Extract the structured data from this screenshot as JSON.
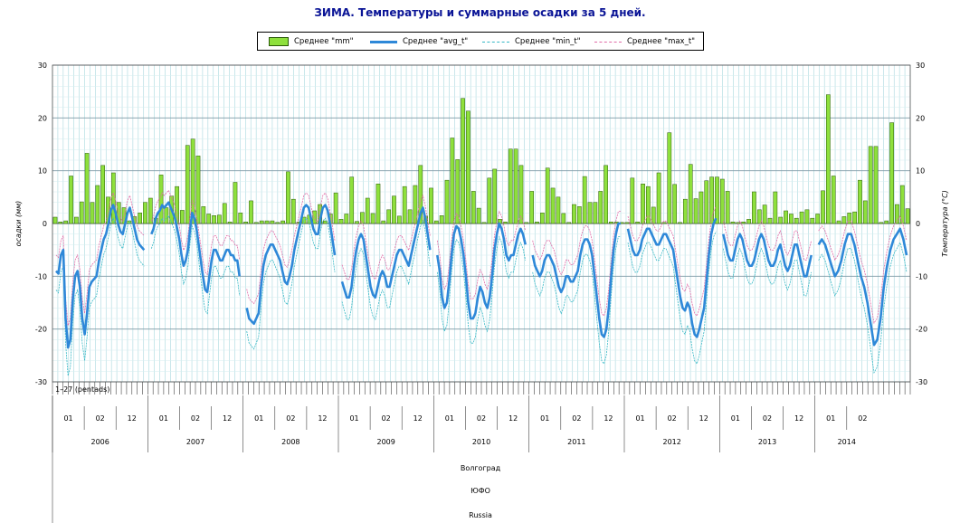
{
  "chart_title": "ЗИМА. Температуры и суммарные осадки за 5 дней.",
  "legend": {
    "mm": "Среднее \"mm\"",
    "avg_t": "Среднее \"avg_t\"",
    "min_t": "Среднее \"min_t\"",
    "max_t": "Среднее \"max_t\""
  },
  "colors": {
    "mm_fill": "#8ee03c",
    "mm_stroke": "#2a5a08",
    "avg_t": "#2e88d8",
    "min_t": "#35b8c6",
    "max_t": "#e06aa6",
    "grid": "#a8d8de",
    "title": "#0a1496"
  },
  "chart_data": {
    "type": "bar+line",
    "title": "ЗИМА. Температуры и суммарные осадки за 5 дней.",
    "ylabel_left": "осадки (мм)",
    "ylabel_right": "Температура (°C)",
    "ylim": [
      -30,
      30
    ],
    "yticks": [
      30,
      20,
      10,
      0,
      -10,
      -20,
      -30
    ],
    "grid": true,
    "day_ticks_label": "1–27 (pentads)",
    "month_labels": [
      "01",
      "02",
      "12"
    ],
    "years": [
      "2006",
      "2007",
      "2008",
      "2009",
      "2010",
      "2011",
      "2012",
      "2013",
      "2014"
    ],
    "station": "Волгоград",
    "district": "ЮФО",
    "country": "Russia",
    "precipitation_mm": [
      1.2,
      0.3,
      0.5,
      9.0,
      1.2,
      4.1,
      13.3,
      4.0,
      7.2,
      11.0,
      5.0,
      9.6,
      4.0,
      3.0,
      0.5,
      1.3,
      2.0,
      4.0,
      4.8,
      1.0,
      9.2,
      3.0,
      5.2,
      7.0,
      2.5,
      14.8,
      16.0,
      12.8,
      3.2,
      1.8,
      1.5,
      1.6,
      3.8,
      0.3,
      7.8,
      2.0,
      0.3,
      4.3,
      0.2,
      0.5,
      0.5,
      0.5,
      0.2,
      0.5,
      9.8,
      4.6,
      0.3,
      1.2,
      1.6,
      2.4,
      3.6,
      0.5,
      1.8,
      5.8,
      0.8,
      1.8,
      8.8,
      0.4,
      2.1,
      4.8,
      1.9,
      7.5,
      0.5,
      2.6,
      5.2,
      1.4,
      7.0,
      2.6,
      7.2,
      11.0,
      1.4,
      6.7,
      0.5,
      1.5,
      8.2,
      16.2,
      12.1,
      23.7,
      21.3,
      6.1,
      2.9,
      0.2,
      8.6,
      10.3,
      0.8,
      0.3,
      14.1,
      14.1,
      11.0,
      0.2,
      6.1,
      0.3,
      2.0,
      10.5,
      6.7,
      5.0,
      1.9,
      0.2,
      3.6,
      3.2,
      8.9,
      4.0,
      4.0,
      6.1,
      11.0,
      0.3,
      0.3,
      0.2,
      0.2,
      8.6,
      0.3,
      7.5,
      7.0,
      3.1,
      9.6,
      0.2,
      17.2,
      7.4,
      0.2,
      4.6,
      11.2,
      4.7,
      6.0,
      8.1,
      8.8,
      8.8,
      8.4,
      6.1,
      0.3,
      0.2,
      0.3,
      0.8,
      6.0,
      2.6,
      3.5,
      1.0,
      6.0,
      1.2,
      2.4,
      1.8,
      1.0,
      2.2,
      2.6,
      1.0,
      1.8,
      6.2,
      24.4,
      9.0,
      0.5,
      1.3,
      2.0,
      2.2,
      8.2,
      4.3,
      14.6,
      14.6,
      0.2,
      0.5,
      19.1,
      3.6,
      7.2,
      2.8
    ],
    "temperature_segments": [
      {
        "year": "2006",
        "avg": [
          -9,
          -9.5,
          -6,
          -5,
          -18,
          -23.5,
          -22,
          -14.5,
          -10,
          -9,
          -12,
          -18,
          -21,
          -17,
          -12,
          -11,
          -10.5,
          -10,
          -7,
          -5,
          -3,
          -2,
          0,
          2.5,
          3.5,
          2,
          0,
          -1.5,
          -2,
          0,
          2,
          3,
          1,
          -1,
          -3,
          -4,
          -4.5,
          -5
        ]
      },
      {
        "year": "2007",
        "avg": [
          -2,
          -1,
          1,
          2,
          2.5,
          3.5,
          3,
          3.5,
          4,
          3,
          2,
          1,
          -1,
          -3,
          -6,
          -8,
          -7,
          -5,
          -1,
          2,
          1,
          -1,
          -4,
          -7,
          -10,
          -12.5,
          -13,
          -10,
          -7,
          -5,
          -5,
          -6,
          -7,
          -7,
          -6,
          -5,
          -5,
          -6,
          -6,
          -7,
          -7,
          -10
        ]
      },
      {
        "year": "2008",
        "avg": [
          -16,
          -18,
          -18.5,
          -19,
          -18,
          -17,
          -12,
          -8,
          -6,
          -5,
          -4,
          -4,
          -5,
          -6,
          -7,
          -9,
          -11,
          -11.5,
          -10,
          -8,
          -5,
          -3,
          -1,
          1,
          3,
          3.5,
          3,
          1,
          -1,
          -2,
          -2,
          1,
          3,
          3.5,
          2.5,
          0,
          -3,
          -6
        ]
      },
      {
        "year": "2009",
        "avg": [
          -11,
          -12.5,
          -14,
          -14,
          -12,
          -8,
          -5,
          -3,
          -2,
          -3,
          -6,
          -9,
          -12,
          -13.5,
          -14,
          -12,
          -10,
          -9,
          -10,
          -12,
          -12,
          -10,
          -8,
          -6,
          -5,
          -5,
          -6,
          -7,
          -8,
          -6,
          -4,
          -2,
          0,
          2,
          3,
          1,
          -2,
          -5
        ]
      },
      {
        "year": "2010",
        "avg": [
          -6,
          -9,
          -14,
          -16,
          -15,
          -11,
          -6,
          -2,
          -0.5,
          -1,
          -3,
          -6,
          -10,
          -15,
          -18,
          -18,
          -17,
          -14,
          -12,
          -13,
          -15,
          -16,
          -14,
          -10,
          -5,
          -2,
          0,
          -1,
          -3,
          -6,
          -7,
          -6,
          -6,
          -4,
          -2,
          -1,
          -2,
          -4
        ]
      },
      {
        "year": "2011",
        "avg": [
          -6,
          -8,
          -9,
          -10,
          -9,
          -7,
          -6,
          -6,
          -7,
          -8,
          -10,
          -12,
          -13,
          -12,
          -10,
          -10,
          -11,
          -11,
          -10,
          -9,
          -6,
          -4,
          -3,
          -3,
          -4,
          -6,
          -10,
          -14,
          -18,
          -21,
          -21.5,
          -20,
          -16,
          -10,
          -5,
          -2,
          0,
          0
        ]
      },
      {
        "year": "2012",
        "avg": [
          -1,
          -3,
          -5,
          -6,
          -6,
          -5,
          -3,
          -2,
          -1,
          -1,
          -2,
          -3,
          -4,
          -4,
          -3,
          -2,
          -2,
          -3,
          -4,
          -5,
          -8,
          -11,
          -14,
          -16,
          -16.5,
          -15,
          -16,
          -19,
          -21,
          -21.5,
          -20,
          -18,
          -16,
          -11,
          -6,
          -2,
          0,
          1
        ]
      },
      {
        "year": "2013",
        "avg": [
          -2,
          -4,
          -6,
          -7,
          -7,
          -5,
          -3,
          -2,
          -3,
          -5,
          -7,
          -8,
          -8,
          -7,
          -5,
          -3,
          -2,
          -3,
          -5,
          -7,
          -8,
          -8,
          -7,
          -5,
          -4,
          -6,
          -8,
          -9,
          -8,
          -6,
          -4,
          -4,
          -6,
          -8,
          -10,
          -10,
          -8,
          -6
        ]
      },
      {
        "year": "2014",
        "avg": [
          -4,
          -3,
          -4,
          -6,
          -8,
          -10,
          -9,
          -7,
          -4,
          -2,
          -2,
          -4,
          -7,
          -10,
          -12,
          -15,
          -19,
          -23,
          -22,
          -18,
          -12,
          -8,
          -5,
          -3,
          -2,
          -1,
          -3,
          -6
        ]
      }
    ]
  }
}
